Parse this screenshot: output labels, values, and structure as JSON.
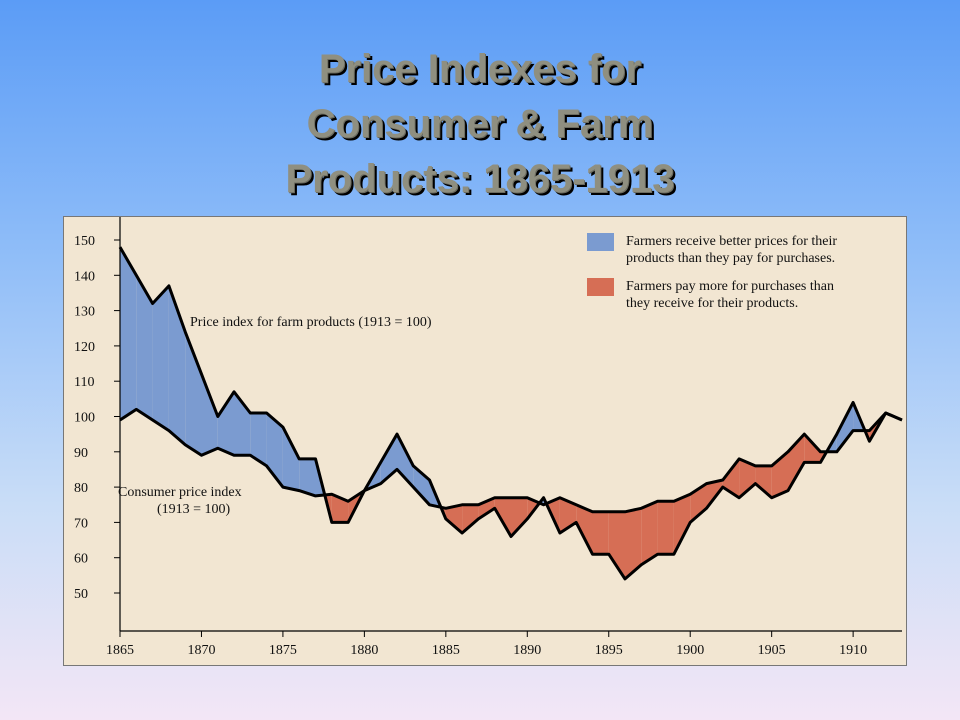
{
  "title_lines": [
    "Price Indexes for",
    "Consumer & Farm",
    "Products:  1865-1913"
  ],
  "legend": [
    {
      "label_lines": [
        "Farmers receive better prices for their",
        "products than they pay for purchases."
      ],
      "color": "#7b9bd0"
    },
    {
      "label_lines": [
        "Farmers pay more for purchases than",
        "they receive for their products."
      ],
      "color": "#d66e55"
    }
  ],
  "annotations": {
    "farm_label": "Price index for farm products (1913 = 100)",
    "cpi_label_lines": [
      "Consumer price index",
      "(1913 = 100)"
    ]
  },
  "chart_data": {
    "type": "line",
    "title": "Price Indexes for Consumer & Farm Products:  1865-1913",
    "xlim": [
      1865,
      1913
    ],
    "ylim": [
      40,
      155
    ],
    "x_ticks": [
      1865,
      1870,
      1875,
      1880,
      1885,
      1890,
      1895,
      1900,
      1905,
      1910
    ],
    "y_ticks": [
      50,
      60,
      70,
      80,
      90,
      100,
      110,
      120,
      130,
      140,
      150
    ],
    "x": [
      1865,
      1866,
      1867,
      1868,
      1869,
      1870,
      1871,
      1872,
      1873,
      1874,
      1875,
      1876,
      1877,
      1878,
      1879,
      1880,
      1881,
      1882,
      1883,
      1884,
      1885,
      1886,
      1887,
      1888,
      1889,
      1890,
      1891,
      1892,
      1893,
      1894,
      1895,
      1896,
      1897,
      1898,
      1899,
      1900,
      1901,
      1902,
      1903,
      1904,
      1905,
      1906,
      1907,
      1908,
      1909,
      1910,
      1911,
      1912,
      1913
    ],
    "series": [
      {
        "name": "Price index for farm products (1913 = 100)",
        "values": [
          148,
          140,
          132,
          137,
          124,
          112,
          100,
          107,
          101,
          101,
          97,
          88,
          88,
          70,
          70,
          79,
          87,
          95,
          86,
          82,
          71,
          67,
          71,
          74,
          66,
          71,
          77,
          67,
          70,
          61,
          61,
          54,
          58,
          61,
          61,
          70,
          74,
          80,
          77,
          81,
          77,
          79,
          87,
          87,
          95,
          104,
          93,
          101,
          99
        ]
      },
      {
        "name": "Consumer price index (1913 = 100)",
        "values": [
          99,
          102,
          99,
          96,
          92,
          89,
          91,
          89,
          89,
          86,
          80,
          79,
          77.5,
          78,
          76,
          79,
          81,
          85,
          80,
          75,
          74,
          75,
          75,
          77,
          77,
          77,
          75,
          77,
          75,
          73,
          73,
          73,
          74,
          76,
          76,
          78,
          81,
          82,
          88,
          86,
          86,
          90,
          95,
          90,
          90,
          96,
          96,
          101,
          99
        ]
      }
    ],
    "fill_colors": {
      "farm_above": "#7b9bd0",
      "farm_below": "#d66e55"
    },
    "grid": false,
    "legend_position": "top-right"
  }
}
